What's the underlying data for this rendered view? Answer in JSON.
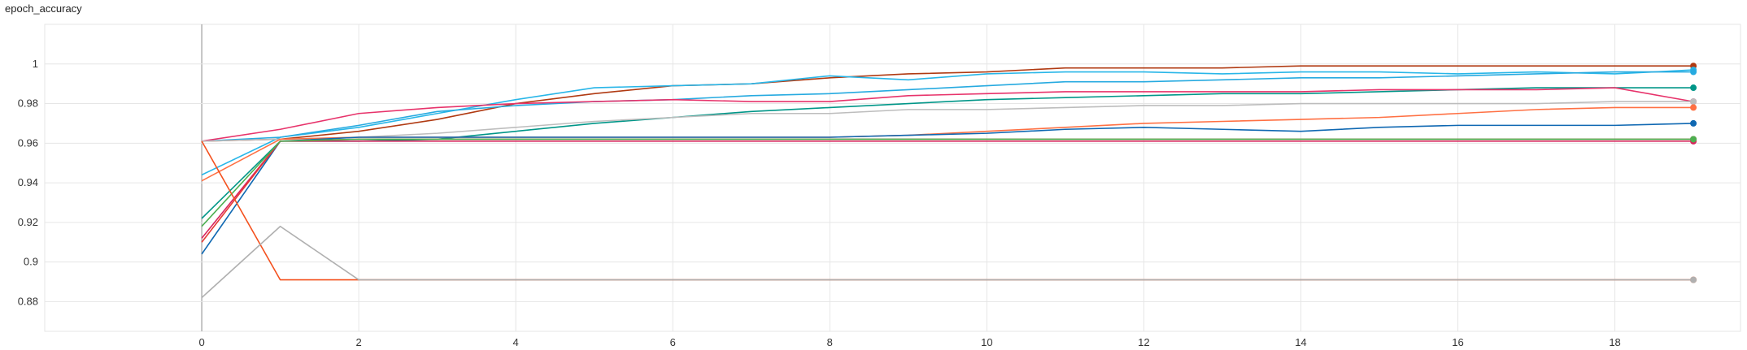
{
  "chart_data": {
    "type": "line",
    "title": "epoch_accuracy",
    "xlabel": "",
    "ylabel": "",
    "xlim": [
      -2,
      19.6
    ],
    "ylim": [
      0.865,
      1.02
    ],
    "grid": true,
    "legend": "none",
    "x_ticks": [
      0,
      2,
      4,
      6,
      8,
      10,
      12,
      14,
      16,
      18
    ],
    "x_tick_labels": [
      "0",
      "2",
      "4",
      "6",
      "8",
      "10",
      "12",
      "14",
      "16",
      "18"
    ],
    "y_ticks": [
      0.88,
      0.9,
      0.92,
      0.94,
      0.96,
      0.98,
      1.0
    ],
    "y_tick_labels": [
      "0.88",
      "0.9",
      "0.92",
      "0.94",
      "0.96",
      "0.98",
      "1"
    ],
    "x": [
      0,
      1,
      2,
      3,
      4,
      5,
      6,
      7,
      8,
      9,
      10,
      11,
      12,
      13,
      14,
      15,
      16,
      17,
      18,
      19
    ],
    "series": [
      {
        "color": "#b03a12",
        "values": [
          0.961,
          0.962,
          0.966,
          0.972,
          0.98,
          0.985,
          0.989,
          0.99,
          0.993,
          0.995,
          0.996,
          0.998,
          0.998,
          0.998,
          0.999,
          0.999,
          0.999,
          0.999,
          0.999,
          0.999
        ]
      },
      {
        "color": "#28b6e8",
        "values": [
          0.944,
          0.963,
          0.968,
          0.975,
          0.982,
          0.988,
          0.989,
          0.99,
          0.994,
          0.992,
          0.995,
          0.996,
          0.996,
          0.995,
          0.996,
          0.996,
          0.995,
          0.996,
          0.995,
          0.997
        ]
      },
      {
        "color": "#26aae0",
        "values": [
          0.961,
          0.963,
          0.969,
          0.976,
          0.979,
          0.981,
          0.982,
          0.984,
          0.985,
          0.987,
          0.989,
          0.991,
          0.991,
          0.992,
          0.993,
          0.993,
          0.994,
          0.995,
          0.996,
          0.996
        ]
      },
      {
        "color": "#009688",
        "values": [
          0.922,
          0.961,
          0.961,
          0.962,
          0.966,
          0.97,
          0.973,
          0.976,
          0.978,
          0.98,
          0.982,
          0.983,
          0.984,
          0.985,
          0.985,
          0.986,
          0.987,
          0.988,
          0.988,
          0.988
        ]
      },
      {
        "color": "#e7336b",
        "values": [
          0.961,
          0.967,
          0.975,
          0.978,
          0.98,
          0.981,
          0.982,
          0.981,
          0.981,
          0.984,
          0.985,
          0.986,
          0.986,
          0.986,
          0.986,
          0.987,
          0.987,
          0.987,
          0.988,
          0.981
        ]
      },
      {
        "color": "#bdbdbd",
        "values": [
          0.961,
          0.962,
          0.963,
          0.965,
          0.968,
          0.971,
          0.973,
          0.975,
          0.975,
          0.977,
          0.977,
          0.978,
          0.979,
          0.979,
          0.98,
          0.98,
          0.98,
          0.98,
          0.981,
          0.981
        ]
      },
      {
        "color": "#ff7043",
        "values": [
          0.941,
          0.962,
          0.963,
          0.963,
          0.963,
          0.963,
          0.963,
          0.963,
          0.963,
          0.964,
          0.966,
          0.968,
          0.97,
          0.971,
          0.972,
          0.973,
          0.975,
          0.977,
          0.978,
          0.978
        ]
      },
      {
        "color": "#0f68b2",
        "values": [
          0.904,
          0.961,
          0.963,
          0.963,
          0.963,
          0.963,
          0.963,
          0.963,
          0.963,
          0.964,
          0.965,
          0.967,
          0.968,
          0.967,
          0.966,
          0.968,
          0.969,
          0.969,
          0.969,
          0.97
        ]
      },
      {
        "color": "#d8225c",
        "values": [
          0.912,
          0.961,
          0.961,
          0.961,
          0.961,
          0.961,
          0.961,
          0.961,
          0.961,
          0.961,
          0.961,
          0.961,
          0.961,
          0.961,
          0.961,
          0.961,
          0.961,
          0.961,
          0.961,
          0.961
        ]
      },
      {
        "color": "#e53935",
        "values": [
          0.91,
          0.961,
          0.962,
          0.962,
          0.962,
          0.962,
          0.962,
          0.962,
          0.962,
          0.962,
          0.962,
          0.962,
          0.962,
          0.962,
          0.962,
          0.962,
          0.962,
          0.962,
          0.962,
          0.962
        ]
      },
      {
        "color": "#4caf50",
        "values": [
          0.918,
          0.961,
          0.962,
          0.962,
          0.962,
          0.962,
          0.962,
          0.962,
          0.962,
          0.962,
          0.962,
          0.962,
          0.962,
          0.962,
          0.962,
          0.962,
          0.962,
          0.962,
          0.962,
          0.962
        ]
      },
      {
        "color": "#f4511e",
        "values": [
          0.961,
          0.891,
          0.891,
          0.891,
          0.891,
          0.891,
          0.891,
          0.891,
          0.891,
          0.891,
          0.891,
          0.891,
          0.891,
          0.891,
          0.891,
          0.891,
          0.891,
          0.891,
          0.891,
          0.891
        ]
      },
      {
        "color": "#b0b0b0",
        "values": [
          0.882,
          0.918,
          0.891,
          0.891,
          0.891,
          0.891,
          0.891,
          0.891,
          0.891,
          0.891,
          0.891,
          0.891,
          0.891,
          0.891,
          0.891,
          0.891,
          0.891,
          0.891,
          0.891,
          0.891
        ]
      }
    ]
  }
}
